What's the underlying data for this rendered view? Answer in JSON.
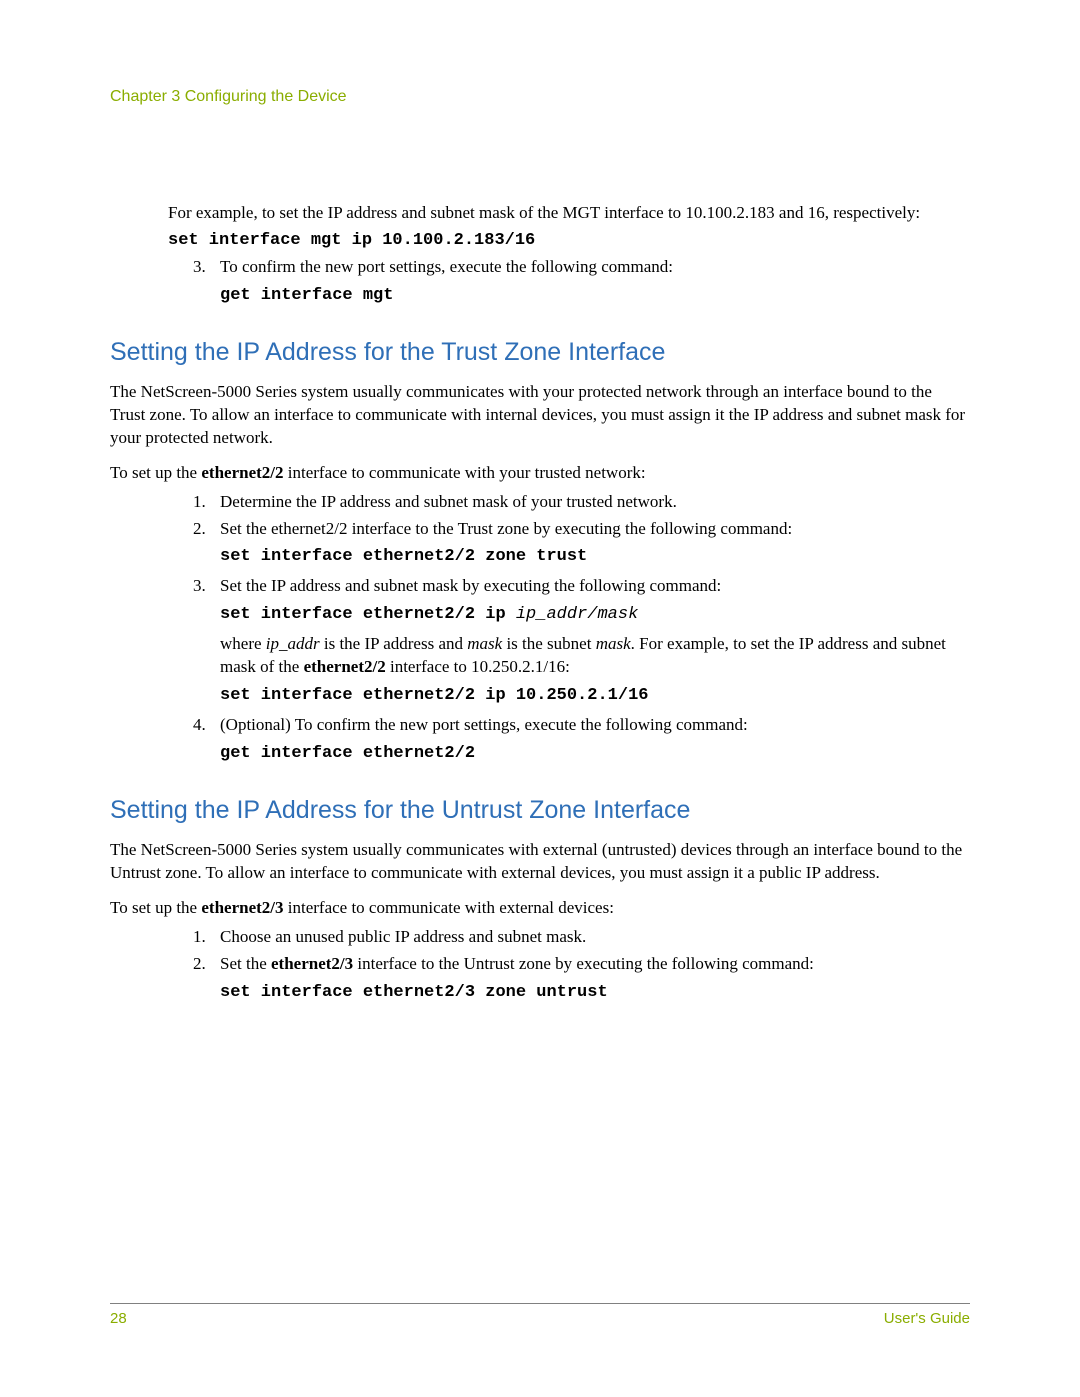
{
  "header": "Chapter 3 Configuring the Device",
  "intro_para": "For example, to set the IP address and subnet mask of the MGT interface to 10.100.2.183 and 16, respectively:",
  "intro_cmd": "set interface mgt ip 10.100.2.183/16",
  "step3_text": "To confirm the new port settings, execute the following command:",
  "step3_cmd": "get interface mgt",
  "trust": {
    "heading": "Setting the IP Address for the Trust Zone Interface",
    "para": "The NetScreen-5000 Series system usually communicates with your protected network through an interface bound to the Trust zone. To allow an interface to communicate with internal devices, you must assign it the IP address and subnet mask for your protected network.",
    "setup_pre": "To set up the ",
    "setup_bold": "ethernet2/2",
    "setup_post": " interface to communicate with your trusted network:",
    "s1": "Determine the IP address and subnet mask of your trusted network.",
    "s2": "Set the ethernet2/2 interface to the Trust zone by executing the following command:",
    "s2_cmd": "set interface ethernet2/2 zone trust",
    "s3": "Set the IP address and subnet mask by executing the following command:",
    "s3_cmd_pre": "set interface ethernet2/2 ip ",
    "s3_cmd_ital": "ip_addr/mask",
    "s3_expl_1": "where ",
    "s3_expl_ip": "ip_addr",
    "s3_expl_2": " is the IP address and ",
    "s3_expl_mask": "mask",
    "s3_expl_3": " is the subnet ",
    "s3_expl_mask2": "mask",
    "s3_expl_4": ". For example, to set the IP address and subnet mask of the ",
    "s3_expl_eth": "ethernet2/2",
    "s3_expl_5": " interface to 10.250.2.1/16:",
    "s3_cmd2": "set interface ethernet2/2 ip 10.250.2.1/16",
    "s4": "(Optional) To confirm the new port settings, execute the following command:",
    "s4_cmd": "get interface ethernet2/2"
  },
  "untrust": {
    "heading": "Setting the IP Address for the Untrust Zone Interface",
    "para": "The NetScreen-5000 Series system usually communicates with external (untrusted) devices through an interface bound to the Untrust zone. To allow an interface to communicate with external devices, you must assign it a public IP address.",
    "setup_pre": "To set up the ",
    "setup_bold": "ethernet2/3",
    "setup_post": " interface to communicate with external devices:",
    "s1": "Choose an unused public IP address and subnet mask.",
    "s2_pre": "Set the ",
    "s2_bold": "ethernet2/3",
    "s2_post": " interface to the Untrust zone by executing the following command:",
    "s2_cmd": "set interface ethernet2/3 zone untrust"
  },
  "footer": {
    "page": "28",
    "doc": "User's Guide"
  },
  "colors": {
    "accent_green": "#8aad00",
    "heading_blue": "#2f6fb7",
    "text": "#000000",
    "rule": "#808080",
    "background": "#ffffff"
  },
  "typography": {
    "body_family": "Georgia serif",
    "heading_family": "Arial sans-serif",
    "mono_family": "Courier New",
    "body_size_pt": 13,
    "heading_size_pt": 19,
    "header_size_pt": 12,
    "footer_size_pt": 11
  }
}
